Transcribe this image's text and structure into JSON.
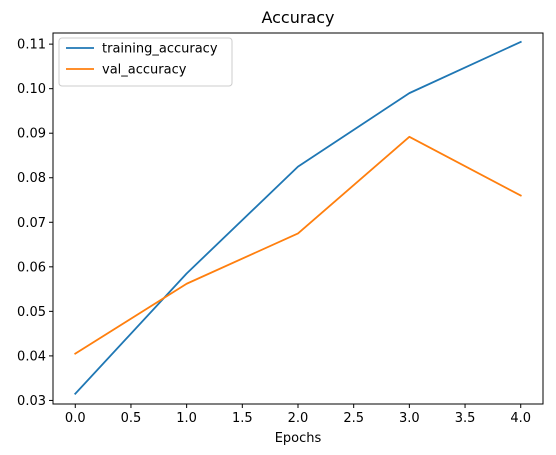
{
  "chart_data": {
    "type": "line",
    "title": "Accuracy",
    "xlabel": "Epochs",
    "ylabel": "",
    "x": [
      0,
      1,
      2,
      3,
      4
    ],
    "xlim": [
      -0.2,
      4.2
    ],
    "ylim": [
      0.0292,
      0.1125
    ],
    "xticks": [
      0,
      0.5,
      1,
      1.5,
      2,
      2.5,
      3,
      3.5,
      4
    ],
    "xtick_labels": [
      "0.0",
      "0.5",
      "1.0",
      "1.5",
      "2.0",
      "2.5",
      "3.0",
      "3.5",
      "4.0"
    ],
    "yticks": [
      0.03,
      0.04,
      0.05,
      0.06,
      0.07,
      0.08,
      0.09,
      0.1,
      0.11
    ],
    "ytick_labels": [
      "0.03",
      "0.04",
      "0.05",
      "0.06",
      "0.07",
      "0.08",
      "0.09",
      "0.10",
      "0.11"
    ],
    "grid": false,
    "legend_position": "top-left",
    "series": [
      {
        "name": "training_accuracy",
        "color": "#1f77b4",
        "values": [
          0.0315,
          0.0585,
          0.0825,
          0.099,
          0.1105
        ]
      },
      {
        "name": "val_accuracy",
        "color": "#ff7f0e",
        "values": [
          0.0405,
          0.0562,
          0.0675,
          0.0892,
          0.076
        ]
      }
    ]
  }
}
